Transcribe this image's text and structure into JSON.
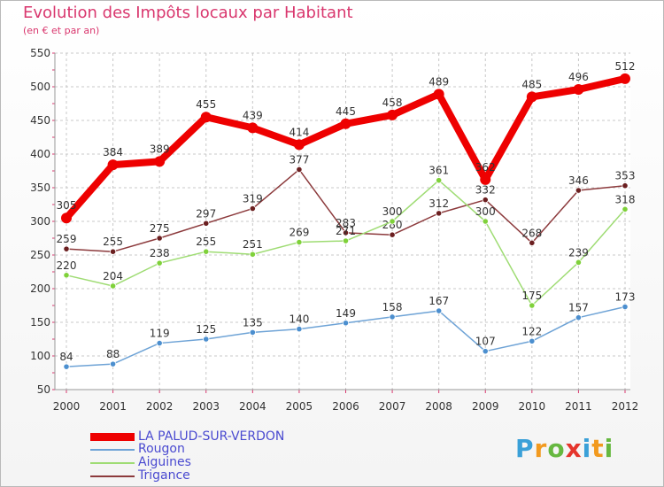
{
  "header": {
    "title": "Evolution des Impôts locaux par Habitant",
    "subtitle": "(en € et par an)"
  },
  "logo": {
    "letters": [
      "P",
      "r",
      "o",
      "x",
      "i",
      "t",
      "i"
    ],
    "colors": [
      "#3aa0d8",
      "#f29a1f",
      "#66b840",
      "#e5352c",
      "#3aa0d8",
      "#f29a1f",
      "#66b840"
    ]
  },
  "chart_data": {
    "type": "line",
    "title": "Evolution des Impôts locaux par Habitant",
    "subtitle": "(en € et par an)",
    "xlabel": "",
    "ylabel": "",
    "categories": [
      "2000",
      "2001",
      "2002",
      "2003",
      "2004",
      "2005",
      "2006",
      "2007",
      "2008",
      "2009",
      "2010",
      "2011",
      "2012"
    ],
    "ylim": [
      50,
      550
    ],
    "yticks": [
      50,
      100,
      150,
      200,
      250,
      300,
      350,
      400,
      450,
      500,
      550
    ],
    "grid": "horizontal dashed",
    "legend_position": "bottom-left",
    "series": [
      {
        "name": "LA PALUD-SUR-VERDON",
        "color": "#ee0000",
        "line_color": "#ee0000",
        "width": "thick",
        "values": [
          305,
          384,
          389,
          455,
          439,
          414,
          445,
          458,
          489,
          362,
          485,
          496,
          512
        ]
      },
      {
        "name": "Rougon",
        "color": "#4c8fcf",
        "line_color": "#6ea3d6",
        "width": "thin",
        "values": [
          84,
          88,
          119,
          125,
          135,
          140,
          149,
          158,
          167,
          107,
          122,
          157,
          173
        ]
      },
      {
        "name": "Aiguines",
        "color": "#7fd13a",
        "line_color": "#9fdc74",
        "width": "thin",
        "values": [
          220,
          204,
          238,
          255,
          251,
          269,
          271,
          300,
          361,
          300,
          175,
          239,
          318
        ]
      },
      {
        "name": "Trigance",
        "color": "#6b1f20",
        "line_color": "#8c3a3c",
        "width": "thin",
        "values": [
          259,
          255,
          275,
          297,
          319,
          377,
          283,
          280,
          312,
          332,
          268,
          346,
          353
        ]
      }
    ]
  }
}
